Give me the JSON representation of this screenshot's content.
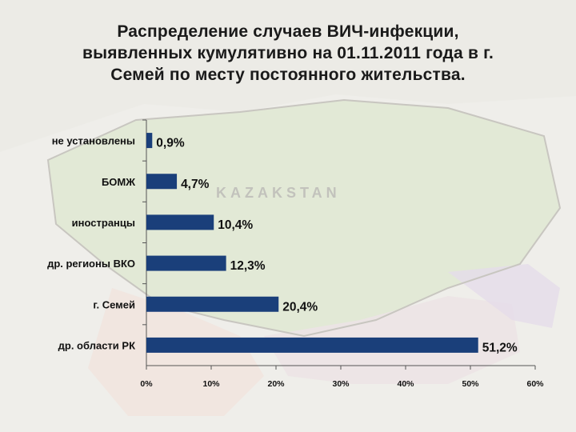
{
  "title_lines": [
    "Распределение случаев ВИЧ-инфекции,",
    "выявленных кумулятивно на 01.11.2011 года  в г.",
    "Семей по месту постоянного жительства."
  ],
  "background": {
    "map_label": "KAZAKSTAN"
  },
  "colors": {
    "bar": "#1a3f7a",
    "axis": "#555555"
  },
  "chart_data": {
    "type": "bar",
    "orientation": "horizontal",
    "categories": [
      "не установлены",
      "БОМЖ",
      "иностранцы",
      "др. регионы ВКО",
      "г. Семей",
      "др. области РК"
    ],
    "values": [
      0.9,
      4.7,
      10.4,
      12.3,
      20.4,
      51.2
    ],
    "value_labels": [
      "0,9%",
      "4,7%",
      "10,4%",
      "12,3%",
      "20,4%",
      "51,2%"
    ],
    "xlim": [
      0,
      60
    ],
    "xticks": [
      0,
      10,
      20,
      30,
      40,
      50,
      60
    ],
    "xtick_labels": [
      "0%",
      "10%",
      "20%",
      "30%",
      "40%",
      "50%",
      "60%"
    ],
    "grid": false,
    "legend": "none"
  }
}
